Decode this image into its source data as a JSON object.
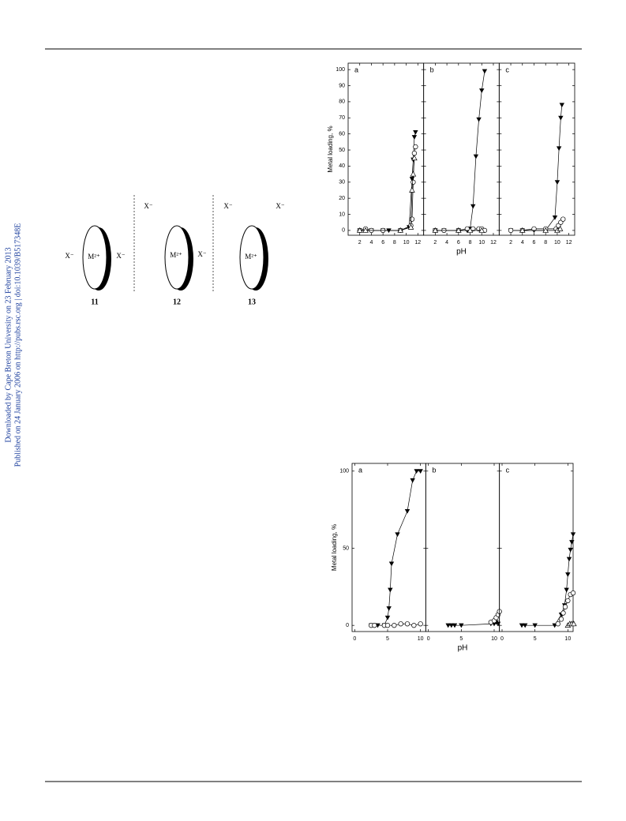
{
  "side_text": [
    "Downloaded by Cape Breton University on 23 February 2013",
    "Published on 24 January 2006 on http://pubs.rsc.org | doi:10.1039/B517348E"
  ],
  "diagram": {
    "structures": [
      {
        "number": "11",
        "ion": "M²⁺",
        "anions": [
          "X⁻",
          "X⁻"
        ]
      },
      {
        "number": "12",
        "ion": "M²⁺",
        "anions": [
          "X⁻",
          "X⁻"
        ]
      },
      {
        "number": "13",
        "ion": "M²⁺",
        "anions": [
          "X⁻",
          "X⁻"
        ]
      }
    ]
  },
  "chart_data": [
    {
      "type": "line",
      "ylabel": "Metal loading, %",
      "xlabel": "pH",
      "ylim": [
        -3,
        104
      ],
      "yticks": [
        0,
        10,
        20,
        30,
        40,
        50,
        60,
        70,
        80,
        90,
        100
      ],
      "panels": [
        {
          "title": "a",
          "xlim": [
            0,
            13
          ],
          "xticks": [
            2,
            4,
            6,
            8,
            10,
            12
          ],
          "series": [
            {
              "marker": "filled-triangle-down",
              "color": "#000000",
              "x": [
                2,
                3,
                4,
                6,
                7,
                9,
                10.5,
                11,
                11.2,
                11.4,
                11.6
              ],
              "values": [
                0,
                0,
                0,
                0,
                0,
                0,
                2,
                32,
                44,
                58,
                61
              ]
            },
            {
              "marker": "open-circle",
              "color": "#000000",
              "x": [
                2,
                3,
                4,
                6,
                9,
                10.8,
                11,
                11.2,
                11.4,
                11.6
              ],
              "values": [
                0,
                1,
                0,
                0,
                0,
                3,
                7,
                30,
                48,
                52
              ]
            },
            {
              "marker": "open-triangle",
              "color": "#000000",
              "x": [
                2,
                3,
                9,
                10.8,
                11,
                11.2,
                11.4
              ],
              "values": [
                0,
                0,
                0,
                2,
                25,
                35,
                45
              ]
            }
          ]
        },
        {
          "title": "b",
          "xlim": [
            0,
            13
          ],
          "xticks": [
            2,
            4,
            6,
            8,
            10,
            12
          ],
          "series": [
            {
              "marker": "filled-triangle-down",
              "color": "#000000",
              "x": [
                2,
                3.5,
                6,
                7.5,
                8,
                8.5,
                9,
                9.5,
                10,
                10.5
              ],
              "values": [
                0,
                0,
                0,
                0,
                1,
                15,
                46,
                69,
                87,
                99
              ]
            },
            {
              "marker": "open-circle",
              "color": "#000000",
              "x": [
                2,
                3.5,
                6,
                7.5,
                8.5,
                9.5,
                10,
                10.5
              ],
              "values": [
                0,
                0,
                0,
                1,
                1,
                1,
                1,
                0
              ]
            },
            {
              "marker": "open-triangle",
              "color": "#000000",
              "x": [
                2,
                6,
                8,
                10
              ],
              "values": [
                0,
                0,
                0,
                0
              ]
            }
          ]
        },
        {
          "title": "c",
          "xlim": [
            0,
            13
          ],
          "xticks": [
            2,
            4,
            6,
            8,
            10,
            12
          ],
          "series": [
            {
              "marker": "filled-triangle-down",
              "color": "#000000",
              "x": [
                2,
                4,
                6,
                8,
                9.6,
                10,
                10.3,
                10.6,
                10.8
              ],
              "values": [
                0,
                0,
                0,
                0,
                8,
                30,
                51,
                70,
                78
              ]
            },
            {
              "marker": "open-circle",
              "color": "#000000",
              "x": [
                2,
                4,
                6,
                8,
                9.8,
                10.2,
                10.6,
                11
              ],
              "values": [
                0,
                0,
                1,
                1,
                1,
                3,
                5,
                7
              ]
            },
            {
              "marker": "open-triangle",
              "color": "#000000",
              "x": [
                4,
                8,
                10,
                10.5
              ],
              "values": [
                0,
                0,
                0,
                1
              ]
            }
          ]
        }
      ]
    },
    {
      "type": "line",
      "ylabel": "Metal loading, %",
      "xlabel": "pH",
      "ylim": [
        -4,
        105
      ],
      "yticks": [
        0,
        50,
        100
      ],
      "panels": [
        {
          "title": "a",
          "xlim": [
            -0.4,
            10.8
          ],
          "xticks": [
            0,
            5,
            10
          ],
          "series": [
            {
              "marker": "filled-triangle-down",
              "color": "#000000",
              "x": [
                2.5,
                3,
                3.5,
                4.5,
                5,
                5.2,
                5.4,
                5.6,
                6.5,
                8,
                8.8,
                9.4,
                10
              ],
              "values": [
                0,
                0,
                0,
                0,
                5,
                11,
                23,
                40,
                59,
                74,
                94,
                100,
                100
              ]
            },
            {
              "marker": "open-circle",
              "color": "#000000",
              "x": [
                2.5,
                3,
                4.5,
                5,
                6,
                7,
                8,
                9,
                10
              ],
              "values": [
                0,
                0,
                0,
                0,
                0,
                1,
                1,
                0,
                1
              ]
            }
          ]
        },
        {
          "title": "b",
          "xlim": [
            -0.4,
            10.8
          ],
          "xticks": [
            0,
            5,
            10
          ],
          "series": [
            {
              "marker": "filled-triangle-down",
              "color": "#000000",
              "x": [
                3,
                3.5,
                4,
                5,
                9.5,
                10,
                10.3,
                10.6
              ],
              "values": [
                0,
                0,
                0,
                0,
                1,
                1,
                2,
                1
              ]
            },
            {
              "marker": "open-circle",
              "color": "#000000",
              "x": [
                9.5,
                10,
                10.3,
                10.6,
                10.8
              ],
              "values": [
                2,
                3,
                5,
                7,
                9
              ]
            }
          ]
        },
        {
          "title": "c",
          "xlim": [
            -0.4,
            10.8
          ],
          "xticks": [
            0,
            5,
            10
          ],
          "series": [
            {
              "marker": "filled-triangle-down",
              "color": "#000000",
              "x": [
                3,
                3.5,
                5,
                8,
                9,
                9.5,
                9.8,
                10,
                10.2,
                10.4,
                10.6,
                10.8
              ],
              "values": [
                0,
                0,
                0,
                0,
                7,
                13,
                23,
                33,
                43,
                49,
                54,
                59
              ]
            },
            {
              "marker": "open-circle",
              "color": "#000000",
              "x": [
                8.5,
                9,
                9.3,
                9.6,
                10,
                10.4,
                10.8
              ],
              "values": [
                1,
                4,
                8,
                12,
                16,
                20,
                21
              ]
            },
            {
              "marker": "open-triangle",
              "color": "#000000",
              "x": [
                10,
                10.3,
                10.6,
                10.9
              ],
              "values": [
                0,
                1,
                1,
                1
              ]
            }
          ]
        }
      ]
    }
  ]
}
